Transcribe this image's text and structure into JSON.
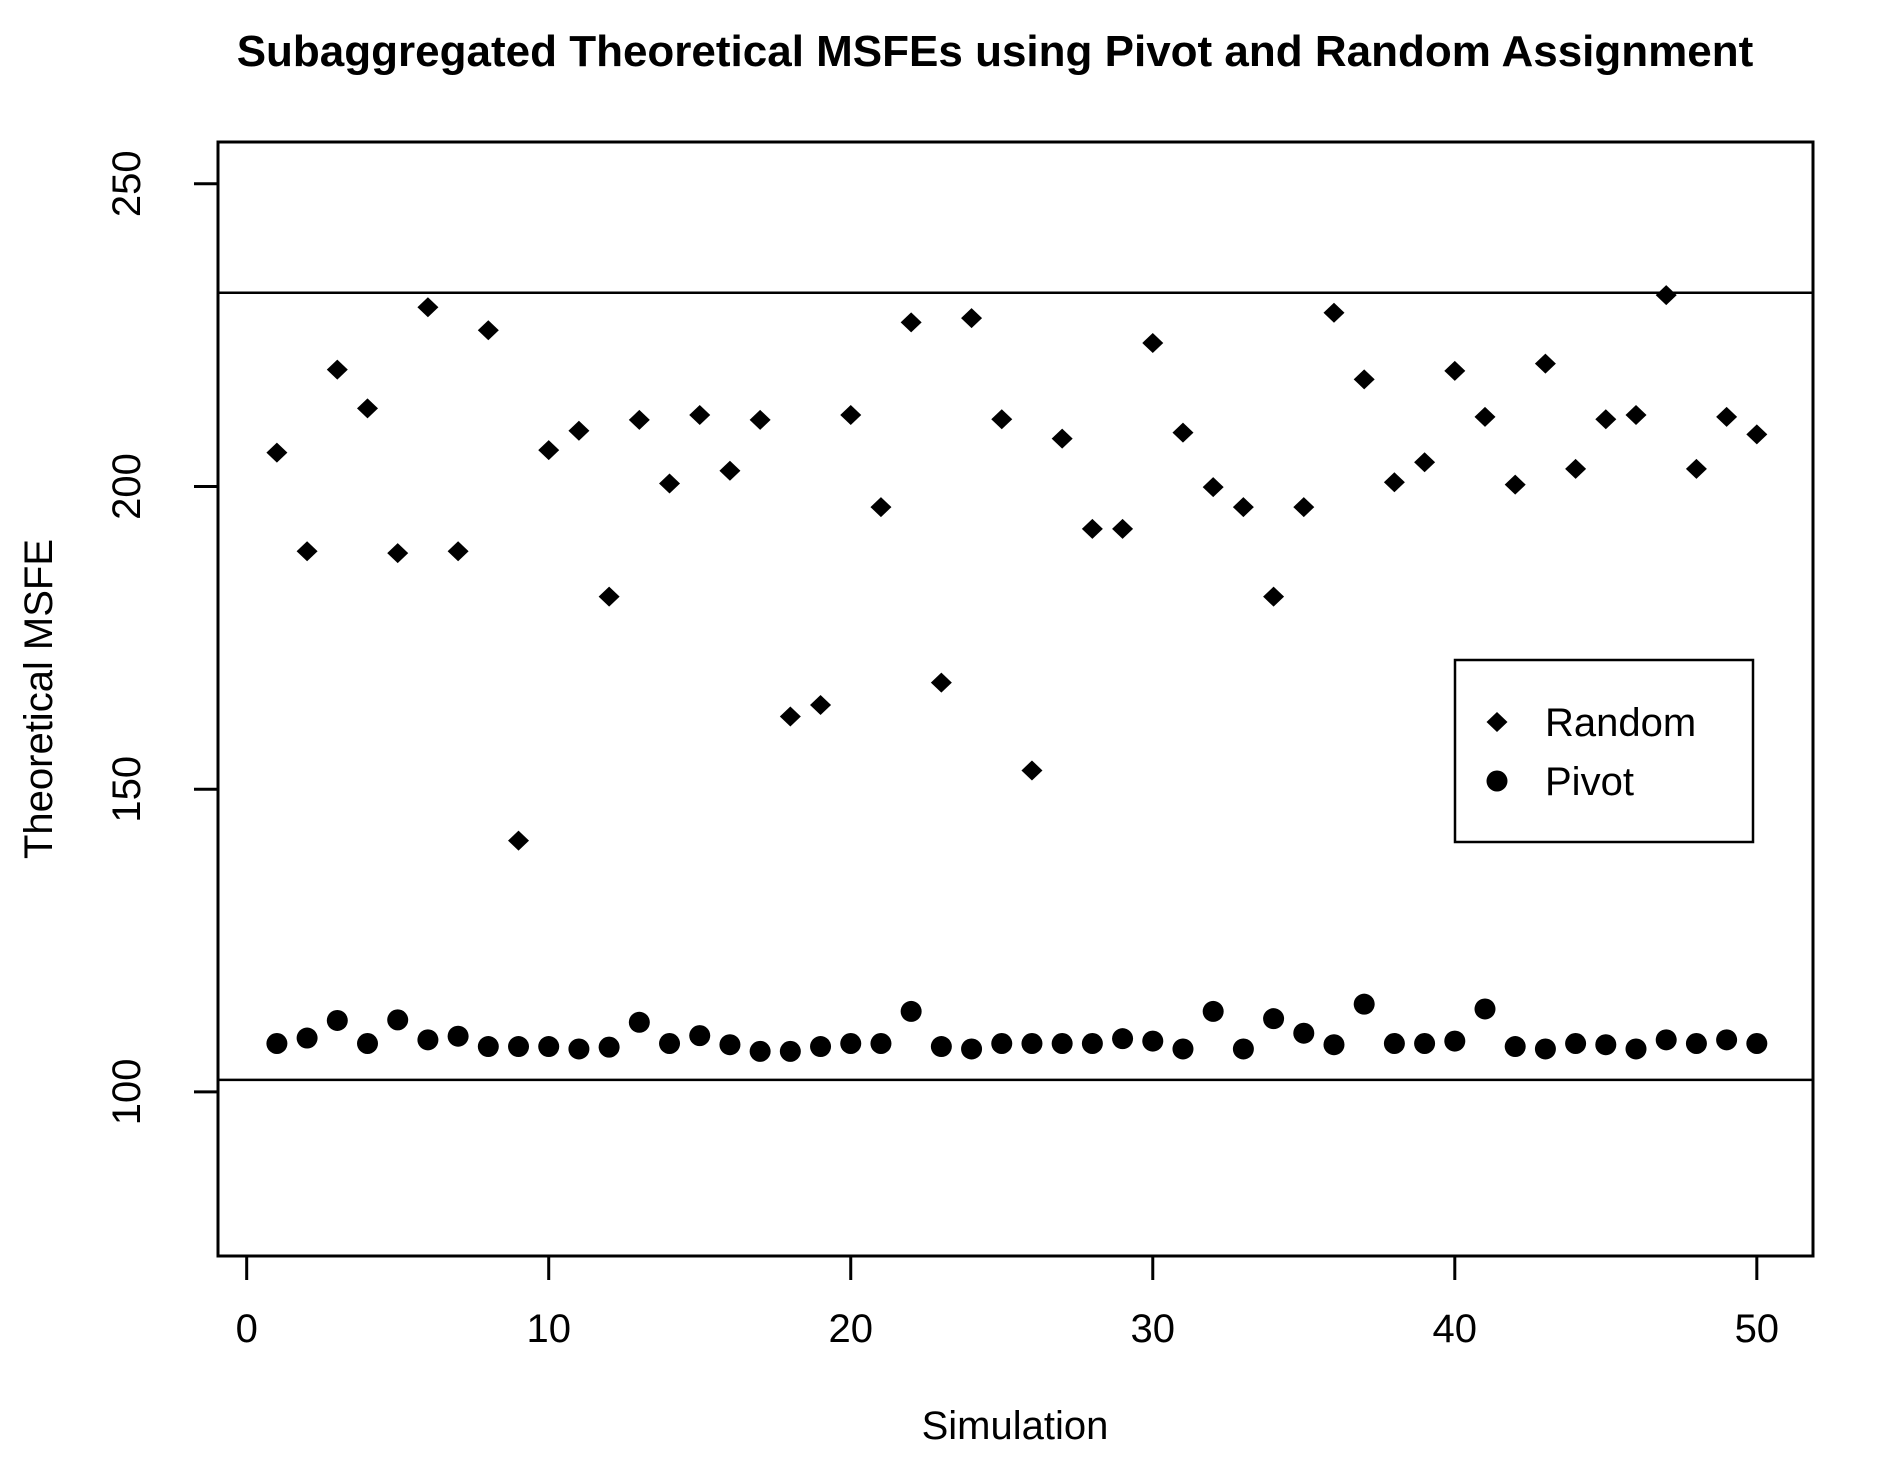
{
  "chart_data": {
    "type": "scatter",
    "title": "Subaggregated Theoretical MSFEs using Pivot and Random Assignment",
    "xlabel": "Simulation",
    "ylabel": "Theoretical MSFE",
    "x_ticks": [
      0,
      10,
      20,
      30,
      40,
      50
    ],
    "y_ticks": [
      100,
      150,
      200,
      250
    ],
    "xlim": [
      -0.95,
      51.86
    ],
    "ylim": [
      72.9,
      256.9
    ],
    "grid": false,
    "hlines": [
      232,
      102
    ],
    "marker_color": "#000000",
    "background_color": "#ffffff",
    "x": [
      1,
      2,
      3,
      4,
      5,
      6,
      7,
      8,
      9,
      10,
      11,
      12,
      13,
      14,
      15,
      16,
      17,
      18,
      19,
      20,
      21,
      22,
      23,
      24,
      25,
      26,
      27,
      28,
      29,
      30,
      31,
      32,
      33,
      34,
      35,
      36,
      37,
      38,
      39,
      40,
      41,
      42,
      43,
      44,
      45,
      46,
      47,
      48,
      49,
      50
    ],
    "series": [
      {
        "name": "Random",
        "marker": "diamond",
        "values": [
          205.6,
          189.3,
          219.3,
          212.9,
          189.0,
          229.6,
          189.3,
          225.8,
          141.5,
          206.0,
          209.2,
          181.8,
          211.0,
          200.5,
          211.8,
          202.6,
          211.0,
          162.0,
          163.9,
          211.8,
          196.6,
          227.1,
          167.6,
          227.8,
          211.1,
          153.1,
          207.9,
          193.0,
          193.0,
          223.7,
          208.9,
          199.9,
          196.6,
          181.8,
          196.6,
          228.7,
          217.7,
          200.7,
          204.0,
          219.1,
          211.5,
          200.3,
          220.3,
          202.9,
          211.1,
          211.8,
          231.6,
          202.9,
          211.5,
          208.6
        ]
      },
      {
        "name": "Pivot",
        "marker": "circle",
        "values": [
          108.0,
          108.9,
          111.8,
          108.0,
          111.9,
          108.6,
          109.2,
          107.5,
          107.5,
          107.5,
          107.1,
          107.4,
          111.5,
          108.0,
          109.3,
          107.8,
          106.7,
          106.7,
          107.5,
          108.0,
          108.0,
          113.3,
          107.5,
          107.1,
          108.0,
          108.0,
          108.0,
          108.0,
          108.8,
          108.4,
          107.1,
          113.3,
          107.1,
          112.1,
          109.7,
          107.8,
          114.5,
          108.0,
          108.0,
          108.4,
          113.7,
          107.5,
          107.1,
          108.0,
          107.8,
          107.1,
          108.6,
          108.0,
          108.6,
          108.0
        ]
      }
    ],
    "legend": {
      "position": "right-middle",
      "items": [
        {
          "label": "Random",
          "marker": "diamond"
        },
        {
          "label": "Pivot",
          "marker": "circle"
        }
      ]
    }
  }
}
